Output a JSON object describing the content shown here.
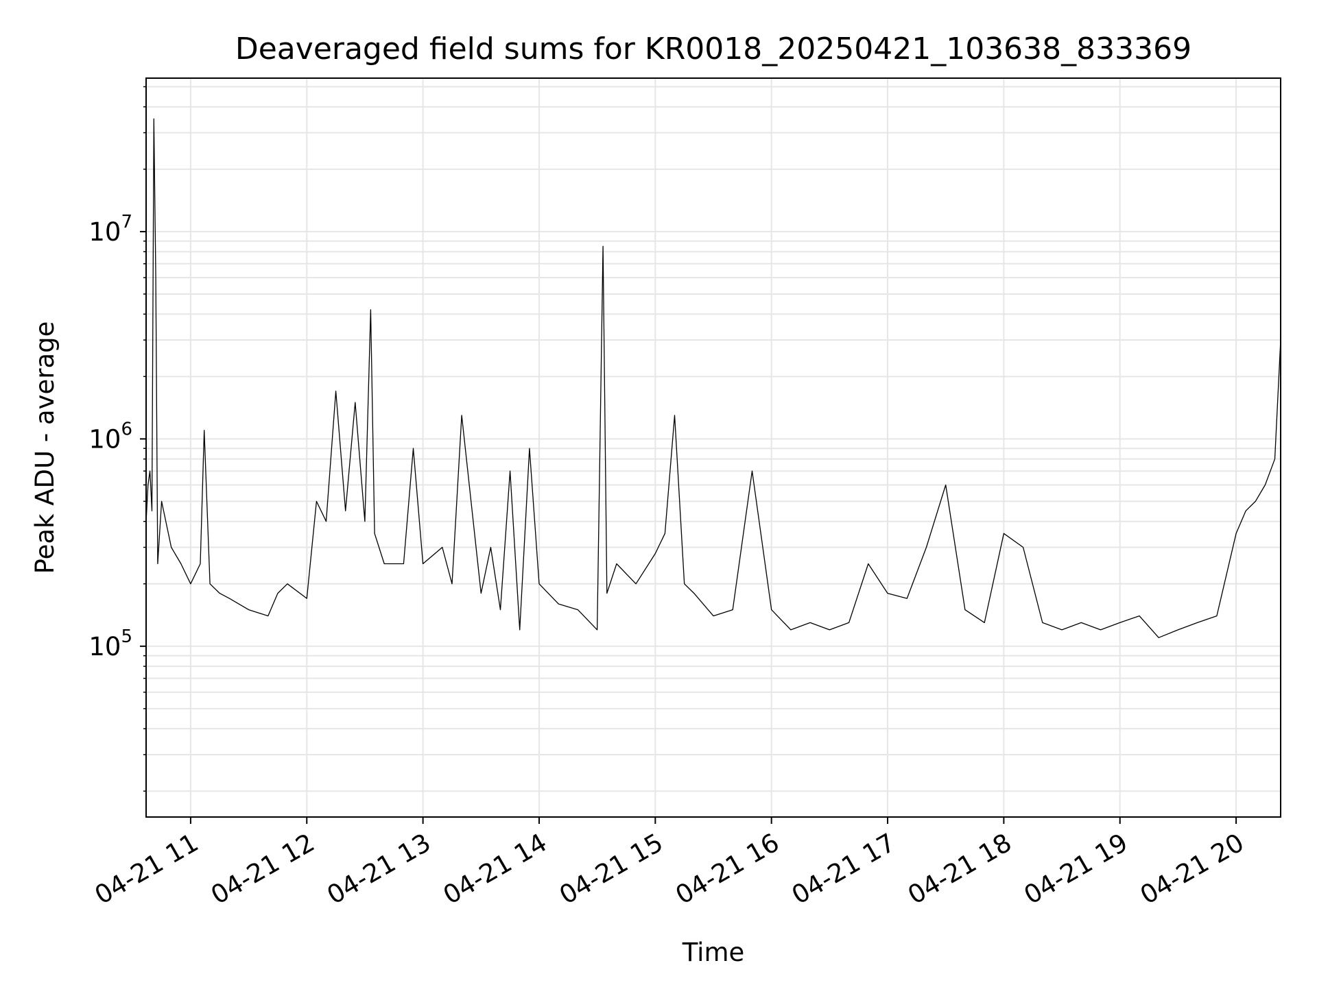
{
  "chart_data": {
    "type": "line",
    "title": "Deaveraged field sums for KR0018_20250421_103638_833369",
    "xlabel": "Time",
    "ylabel": "Peak ADU - average",
    "yscale": "log",
    "ylim": [
      15000,
      55000000
    ],
    "xlim": [
      "2025-04-21 10:37",
      "2025-04-21 20:23"
    ],
    "grid": true,
    "line_color": "#000000",
    "x_ticks": [
      "04-21 11",
      "04-21 12",
      "04-21 13",
      "04-21 14",
      "04-21 15",
      "04-21 16",
      "04-21 17",
      "04-21 18",
      "04-21 19",
      "04-21 20"
    ],
    "y_ticks": [
      {
        "base": "10",
        "exp": "5",
        "value": 100000
      },
      {
        "base": "10",
        "exp": "6",
        "value": 1000000
      },
      {
        "base": "10",
        "exp": "7",
        "value": 10000000
      }
    ],
    "series": [
      {
        "x": [
          "10:37",
          "10:38",
          "10:39",
          "10:40",
          "10:41",
          "10:42",
          "10:43",
          "10:45",
          "10:50",
          "10:55",
          "11:00",
          "11:05",
          "11:07",
          "11:10",
          "11:15",
          "11:20",
          "11:30",
          "11:40",
          "11:45",
          "11:50",
          "12:00",
          "12:05",
          "12:10",
          "12:15",
          "12:20",
          "12:25",
          "12:30",
          "12:33",
          "12:35",
          "12:40",
          "12:50",
          "12:55",
          "13:00",
          "13:10",
          "13:15",
          "13:20",
          "13:30",
          "13:35",
          "13:40",
          "13:45",
          "13:50",
          "13:55",
          "14:00",
          "14:10",
          "14:20",
          "14:30",
          "14:33",
          "14:35",
          "14:40",
          "14:50",
          "15:00",
          "15:05",
          "15:10",
          "15:15",
          "15:20",
          "15:30",
          "15:40",
          "15:50",
          "16:00",
          "16:10",
          "16:20",
          "16:30",
          "16:40",
          "16:50",
          "17:00",
          "17:10",
          "17:20",
          "17:30",
          "17:40",
          "17:50",
          "18:00",
          "18:10",
          "18:20",
          "18:30",
          "18:40",
          "18:50",
          "19:00",
          "19:10",
          "19:20",
          "19:30",
          "19:40",
          "19:50",
          "20:00",
          "20:05",
          "20:10",
          "20:15",
          "20:20",
          "20:23"
        ],
        "y": [
          400000,
          600000,
          700000,
          450000,
          35000000,
          6000000,
          250000,
          500000,
          300000,
          250000,
          200000,
          250000,
          1100000,
          200000,
          180000,
          170000,
          150000,
          140000,
          180000,
          200000,
          170000,
          500000,
          400000,
          1700000,
          450000,
          1500000,
          400000,
          4200000,
          350000,
          250000,
          250000,
          900000,
          250000,
          300000,
          200000,
          1300000,
          180000,
          300000,
          150000,
          700000,
          120000,
          900000,
          200000,
          160000,
          150000,
          120000,
          8500000,
          180000,
          250000,
          200000,
          280000,
          350000,
          1300000,
          200000,
          180000,
          140000,
          150000,
          700000,
          150000,
          120000,
          130000,
          120000,
          130000,
          250000,
          180000,
          170000,
          300000,
          600000,
          150000,
          130000,
          350000,
          300000,
          130000,
          120000,
          130000,
          120000,
          130000,
          140000,
          110000,
          120000,
          130000,
          140000,
          350000,
          450000,
          500000,
          600000,
          800000,
          3000000
        ]
      }
    ]
  }
}
